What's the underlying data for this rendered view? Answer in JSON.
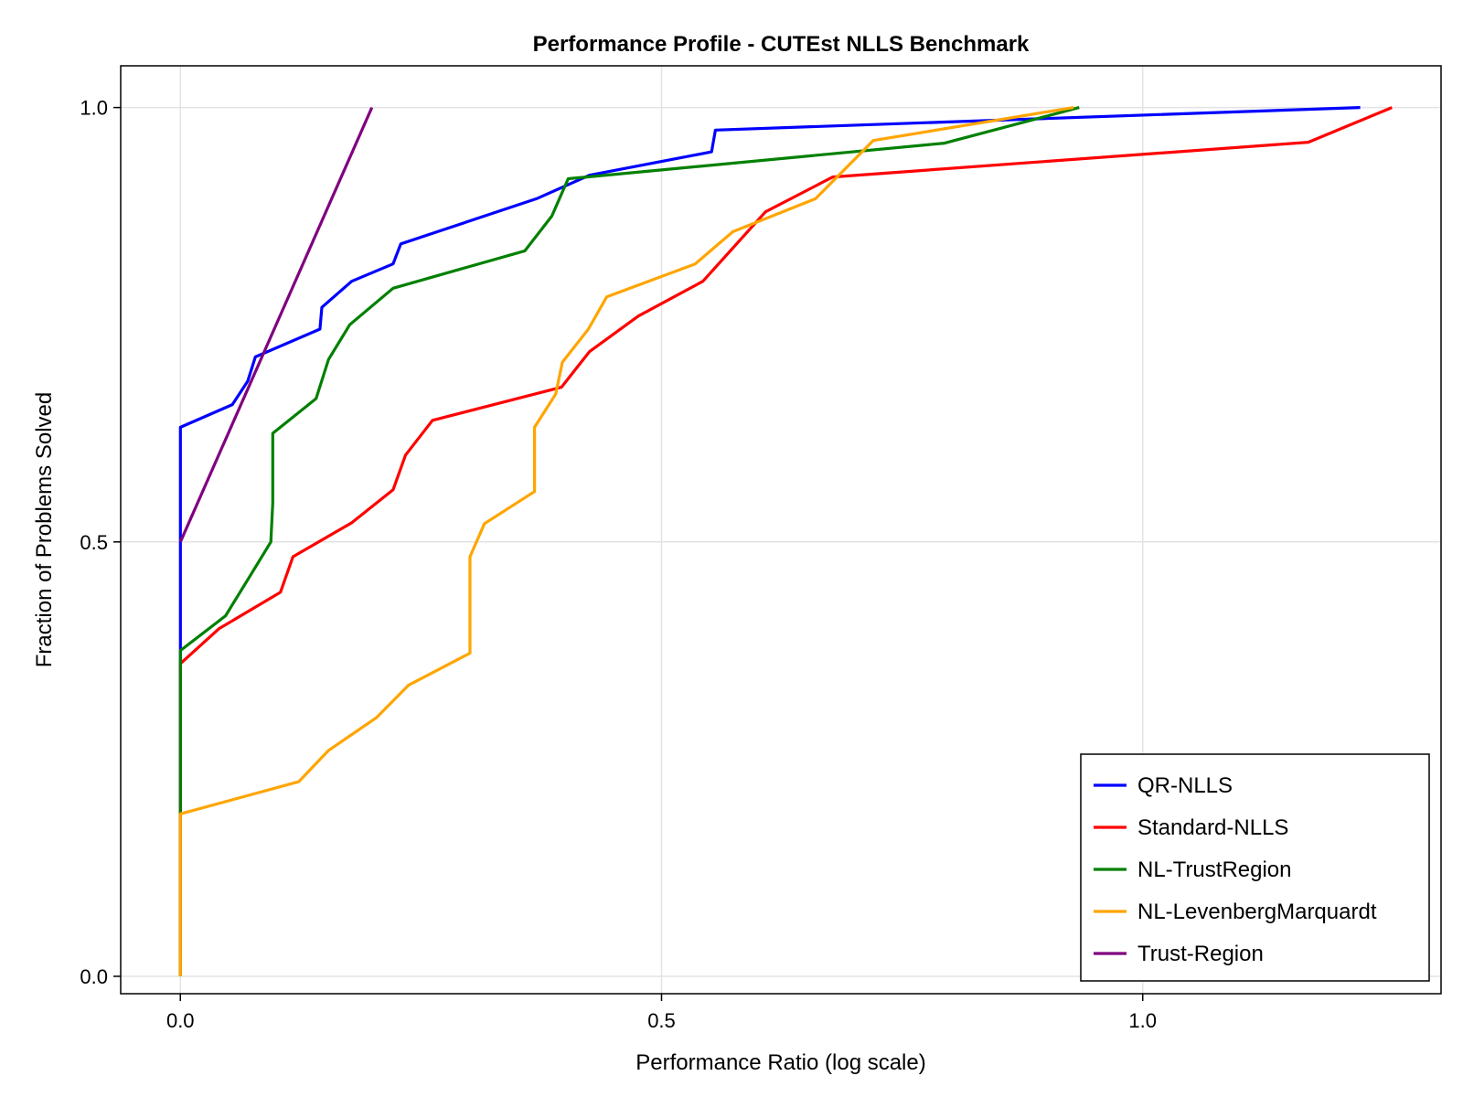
{
  "chart_data": {
    "type": "line",
    "title": "Performance Profile - CUTEst NLLS Benchmark",
    "xlabel": "Performance Ratio (log scale)",
    "ylabel": "Fraction of Problems Solved",
    "xlim": [
      -0.062,
      1.31
    ],
    "ylim": [
      -0.02,
      1.048
    ],
    "xticks": [
      0.0,
      0.5,
      1.0
    ],
    "xtick_labels": [
      "0.0",
      "0.5",
      "1.0"
    ],
    "yticks": [
      0.0,
      0.5,
      1.0
    ],
    "ytick_labels": [
      "0.0",
      "0.5",
      "1.0"
    ],
    "grid": true,
    "legend_position": "bottom-right",
    "series": [
      {
        "name": "QR-NLLS",
        "color": "#0000ff",
        "points": [
          [
            0,
            0.027
          ],
          [
            0,
            0.034
          ],
          [
            0,
            0.37
          ],
          [
            0,
            0.632
          ],
          [
            0.054,
            0.658
          ],
          [
            0.07,
            0.685
          ],
          [
            0.078,
            0.713
          ],
          [
            0.145,
            0.745
          ],
          [
            0.147,
            0.77
          ],
          [
            0.178,
            0.8
          ],
          [
            0.221,
            0.82
          ],
          [
            0.229,
            0.843
          ],
          [
            0.37,
            0.895
          ],
          [
            0.425,
            0.922
          ],
          [
            0.552,
            0.949
          ],
          [
            0.556,
            0.974
          ],
          [
            1.226,
            1.0
          ]
        ]
      },
      {
        "name": "Standard-NLLS",
        "color": "#ff0000",
        "points": [
          [
            0,
            0.0
          ],
          [
            0,
            0.36
          ],
          [
            0.04,
            0.4
          ],
          [
            0.104,
            0.442
          ],
          [
            0.117,
            0.483
          ],
          [
            0.178,
            0.522
          ],
          [
            0.221,
            0.56
          ],
          [
            0.234,
            0.6
          ],
          [
            0.262,
            0.64
          ],
          [
            0.396,
            0.678
          ],
          [
            0.425,
            0.719
          ],
          [
            0.476,
            0.76
          ],
          [
            0.543,
            0.8
          ],
          [
            0.608,
            0.88
          ],
          [
            0.678,
            0.92
          ],
          [
            1.172,
            0.96
          ],
          [
            1.259,
            1.0
          ]
        ]
      },
      {
        "name": "NL-TrustRegion",
        "color": "#008000",
        "points": [
          [
            0,
            0.0
          ],
          [
            0,
            0.17
          ],
          [
            0,
            0.375
          ],
          [
            0.047,
            0.415
          ],
          [
            0.072,
            0.46
          ],
          [
            0.094,
            0.5
          ],
          [
            0.096,
            0.545
          ],
          [
            0.096,
            0.625
          ],
          [
            0.141,
            0.665
          ],
          [
            0.154,
            0.71
          ],
          [
            0.176,
            0.75
          ],
          [
            0.221,
            0.792
          ],
          [
            0.358,
            0.835
          ],
          [
            0.386,
            0.875
          ],
          [
            0.403,
            0.918
          ],
          [
            0.794,
            0.959
          ],
          [
            0.934,
            1.0
          ]
        ]
      },
      {
        "name": "NL-LevenbergMarquardt",
        "color": "#ffa500",
        "points": [
          [
            0,
            0.0
          ],
          [
            0,
            0.187
          ],
          [
            0.123,
            0.224
          ],
          [
            0.154,
            0.26
          ],
          [
            0.204,
            0.298
          ],
          [
            0.237,
            0.335
          ],
          [
            0.301,
            0.372
          ],
          [
            0.301,
            0.483
          ],
          [
            0.316,
            0.521
          ],
          [
            0.368,
            0.558
          ],
          [
            0.368,
            0.632
          ],
          [
            0.39,
            0.67
          ],
          [
            0.397,
            0.707
          ],
          [
            0.424,
            0.745
          ],
          [
            0.443,
            0.782
          ],
          [
            0.535,
            0.82
          ],
          [
            0.574,
            0.857
          ],
          [
            0.66,
            0.895
          ],
          [
            0.72,
            0.962
          ],
          [
            0.928,
            1.0
          ]
        ]
      },
      {
        "name": "Trust-Region",
        "color": "#800080",
        "points": [
          [
            0,
            0.5
          ],
          [
            0.199,
            1.0
          ]
        ]
      }
    ]
  }
}
